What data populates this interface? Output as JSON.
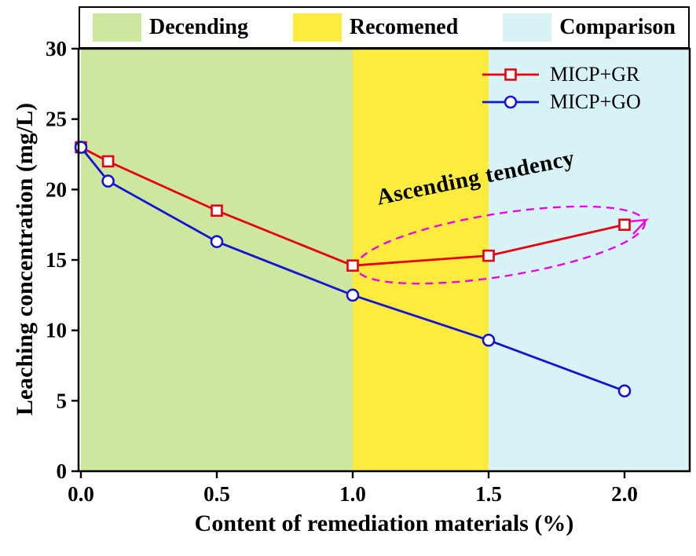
{
  "header": {
    "zones": [
      {
        "label": "Decending",
        "color": "#cde89e"
      },
      {
        "label": "Recomened",
        "color": "#fdec3e"
      },
      {
        "label": "Comparison",
        "color": "#d8f3f6"
      }
    ]
  },
  "chart_data": {
    "type": "line",
    "xlabel": "Content of remediation materials (%)",
    "ylabel": "Leaching concentration (mg/L)",
    "x": [
      0,
      0.1,
      0.5,
      1.0,
      1.5,
      2.0
    ],
    "series": [
      {
        "name": "MICP+GR",
        "color": "#e60012",
        "marker": "square",
        "values": [
          23.0,
          22.0,
          18.5,
          14.6,
          15.3,
          17.5
        ]
      },
      {
        "name": "MICP+GO",
        "color": "#1414d4",
        "marker": "circle",
        "values": [
          23.0,
          20.6,
          16.3,
          12.5,
          9.3,
          5.7
        ]
      }
    ],
    "xlim": [
      0,
      2.24
    ],
    "ylim": [
      0,
      30
    ],
    "x_ticks": [
      0,
      0.5,
      1.0,
      1.5,
      2.0
    ],
    "x_tick_labels": [
      "0.0",
      "0.5",
      "1.0",
      "1.5",
      "2.0"
    ],
    "y_ticks": [
      0,
      5,
      10,
      15,
      20,
      25,
      30
    ],
    "y_tick_labels": [
      "0",
      "5",
      "10",
      "15",
      "20",
      "25",
      "30"
    ],
    "bands": [
      {
        "label": "Decending",
        "from": 0,
        "to": 1.0,
        "color": "#cde89e"
      },
      {
        "label": "Recomened",
        "from": 1.0,
        "to": 1.5,
        "color": "#fdec3e"
      },
      {
        "label": "Comparison",
        "from": 1.5,
        "to": 2.24,
        "color": "#d8f3f6"
      }
    ],
    "legend": {
      "position": "top-right"
    },
    "annotation": {
      "text": "Ascending tendency",
      "text_color": "#000000",
      "ellipse_color": "#ee00ee"
    },
    "grid": false
  }
}
